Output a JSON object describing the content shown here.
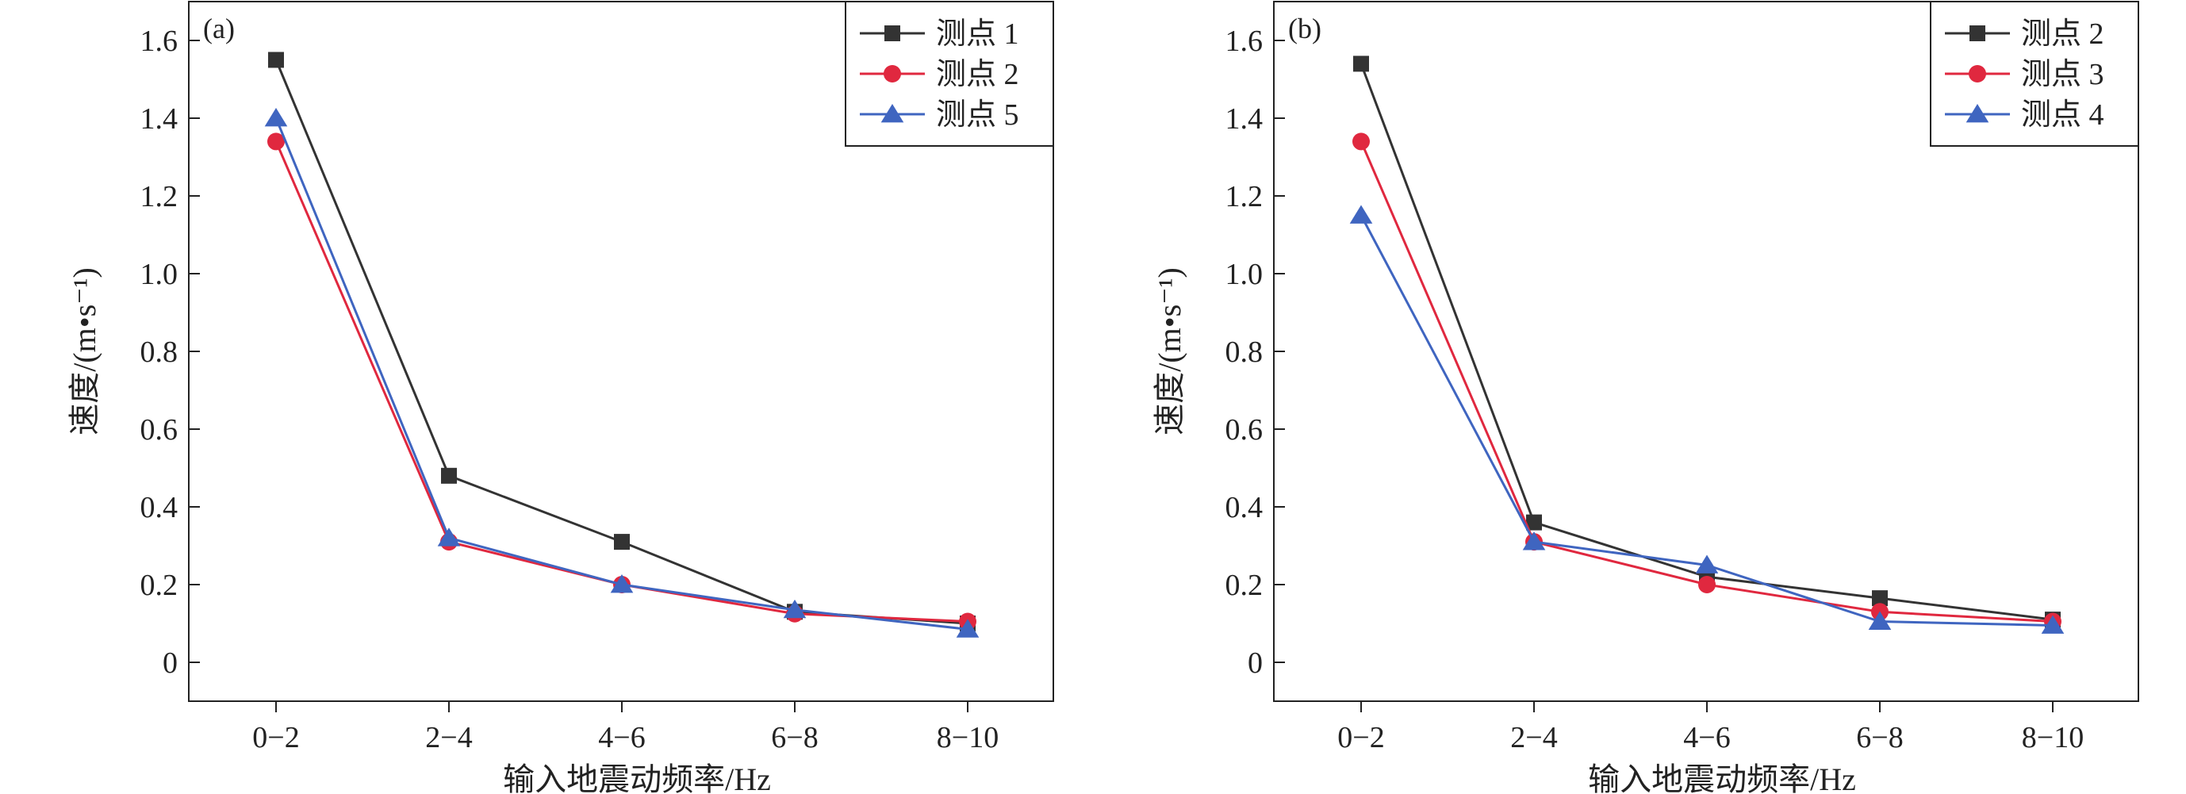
{
  "chart_data": [
    {
      "type": "line",
      "panel_label": "(a)",
      "categories": [
        "0−2",
        "2−4",
        "4−6",
        "6−8",
        "8−10"
      ],
      "xlabel": "输入地震动频率/Hz",
      "ylabel": "速度/(m•s⁻¹)",
      "ylim": [
        -0.1,
        1.7
      ],
      "yticks": [
        0,
        0.2,
        0.4,
        0.6,
        0.8,
        1.0,
        1.2,
        1.4,
        1.6
      ],
      "ytick_labels": [
        "0",
        "0.2",
        "0.4",
        "0.6",
        "0.8",
        "1.0",
        "1.2",
        "1.4",
        "1.6"
      ],
      "grid": false,
      "legend": "top-right",
      "series": [
        {
          "name": "测点 1",
          "marker": "square",
          "color": "#333333",
          "values": [
            1.55,
            0.48,
            0.31,
            0.13,
            0.1
          ]
        },
        {
          "name": "测点 2",
          "marker": "circle",
          "color": "#e0283f",
          "values": [
            1.34,
            0.31,
            0.2,
            0.125,
            0.105
          ]
        },
        {
          "name": "测点 5",
          "marker": "triangle",
          "color": "#3f65c0",
          "values": [
            1.4,
            0.32,
            0.2,
            0.135,
            0.085
          ]
        }
      ]
    },
    {
      "type": "line",
      "panel_label": "(b)",
      "categories": [
        "0−2",
        "2−4",
        "4−6",
        "6−8",
        "8−10"
      ],
      "xlabel": "输入地震动频率/Hz",
      "ylabel": "速度/(m•s⁻¹)",
      "ylim": [
        -0.1,
        1.7
      ],
      "yticks": [
        0,
        0.2,
        0.4,
        0.6,
        0.8,
        1.0,
        1.2,
        1.4,
        1.6
      ],
      "ytick_labels": [
        "0",
        "0.2",
        "0.4",
        "0.6",
        "0.8",
        "1.0",
        "1.2",
        "1.4",
        "1.6"
      ],
      "grid": false,
      "legend": "top-right",
      "series": [
        {
          "name": "测点 2",
          "marker": "square",
          "color": "#333333",
          "values": [
            1.54,
            0.36,
            0.22,
            0.165,
            0.11
          ]
        },
        {
          "name": "测点 3",
          "marker": "circle",
          "color": "#e0283f",
          "values": [
            1.34,
            0.31,
            0.2,
            0.13,
            0.105
          ]
        },
        {
          "name": "测点 4",
          "marker": "triangle",
          "color": "#3f65c0",
          "values": [
            1.15,
            0.31,
            0.25,
            0.105,
            0.095
          ]
        }
      ]
    }
  ]
}
